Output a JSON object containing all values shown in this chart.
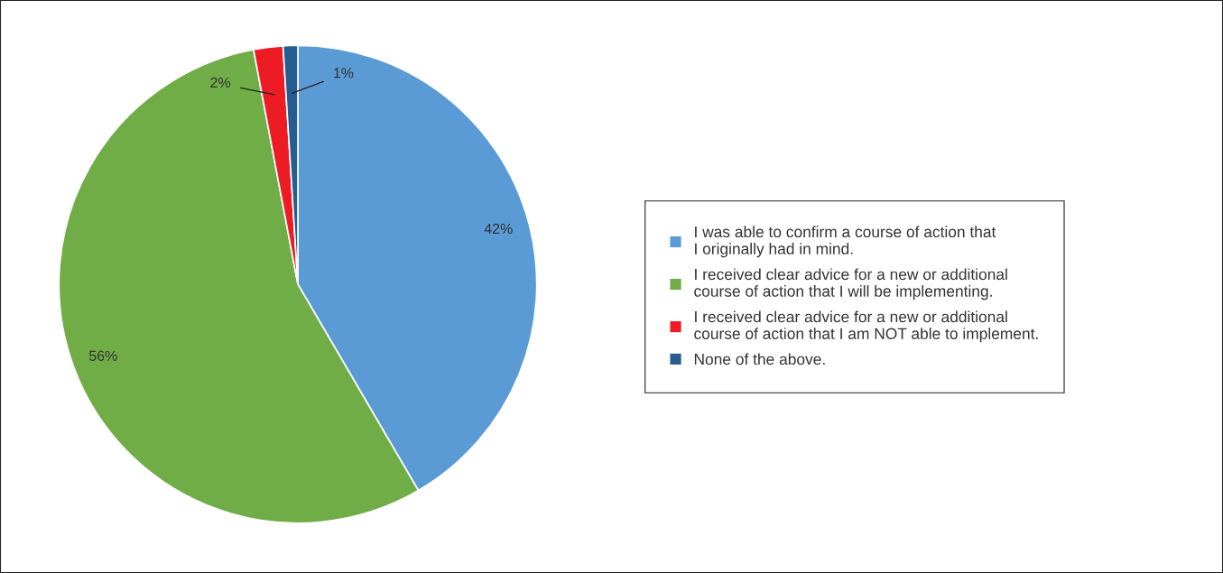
{
  "chart_data": {
    "type": "pie",
    "categories": [
      "I was able to confirm a course of action that\nI originally had in mind.",
      "I received clear advice for a new or additional\ncourse of action that I will be implementing.",
      "I received clear advice for a new or additional\ncourse of action that I am NOT able to implement.",
      "None of the above."
    ],
    "values": [
      42,
      56,
      2,
      1
    ],
    "colors": [
      "#5b9bd5",
      "#70ad47",
      "#ed1c24",
      "#255e91"
    ],
    "value_labels": [
      "42%",
      "56%",
      "2%",
      "1%"
    ],
    "legend": "right"
  }
}
